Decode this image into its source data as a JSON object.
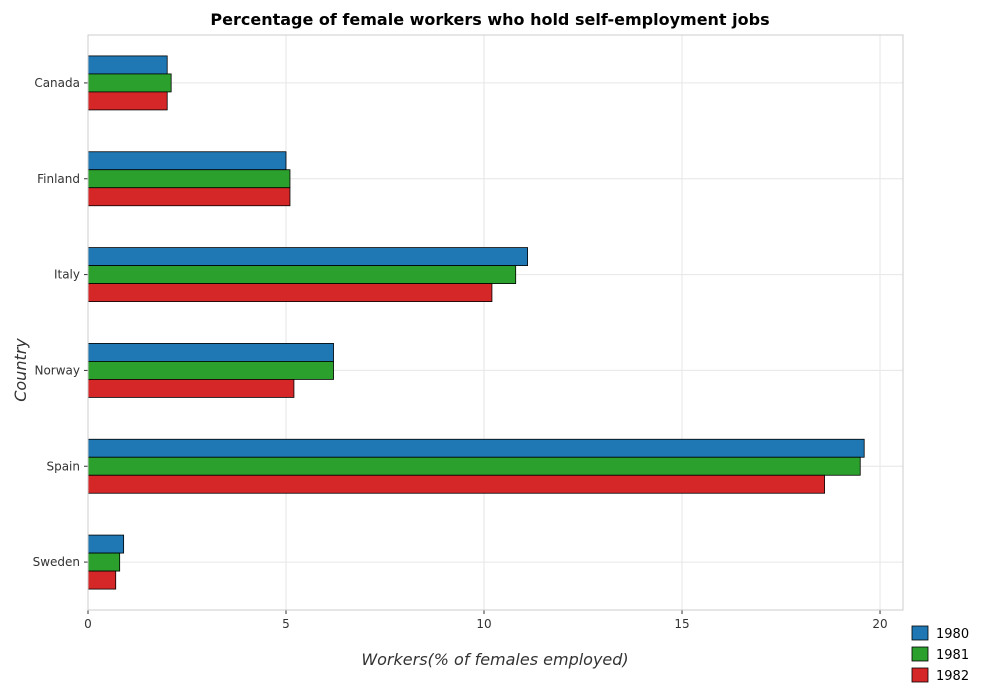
{
  "chart_data": {
    "type": "bar",
    "orientation": "horizontal",
    "title": "Percentage of female workers who hold self-employment jobs",
    "xlabel": "Workers(% of females employed)",
    "ylabel": "Country",
    "categories": [
      "Canada",
      "Finland",
      "Italy",
      "Norway",
      "Spain",
      "Sweden"
    ],
    "series": [
      {
        "name": "1980",
        "color": "#1f77b4",
        "values": [
          2.0,
          5.0,
          11.1,
          6.2,
          19.6,
          0.9
        ]
      },
      {
        "name": "1981",
        "color": "#2ca02c",
        "values": [
          2.1,
          5.1,
          10.8,
          6.2,
          19.5,
          0.8
        ]
      },
      {
        "name": "1982",
        "color": "#d62728",
        "values": [
          2.0,
          5.1,
          10.2,
          5.2,
          18.6,
          0.7
        ]
      }
    ],
    "xlim": [
      0,
      20.58
    ],
    "xticks": [
      0,
      5,
      10,
      15,
      20
    ],
    "xtick_labels": [
      "0",
      "5",
      "10",
      "15",
      "20"
    ],
    "grid": true,
    "legend_position": "bottom-right"
  }
}
